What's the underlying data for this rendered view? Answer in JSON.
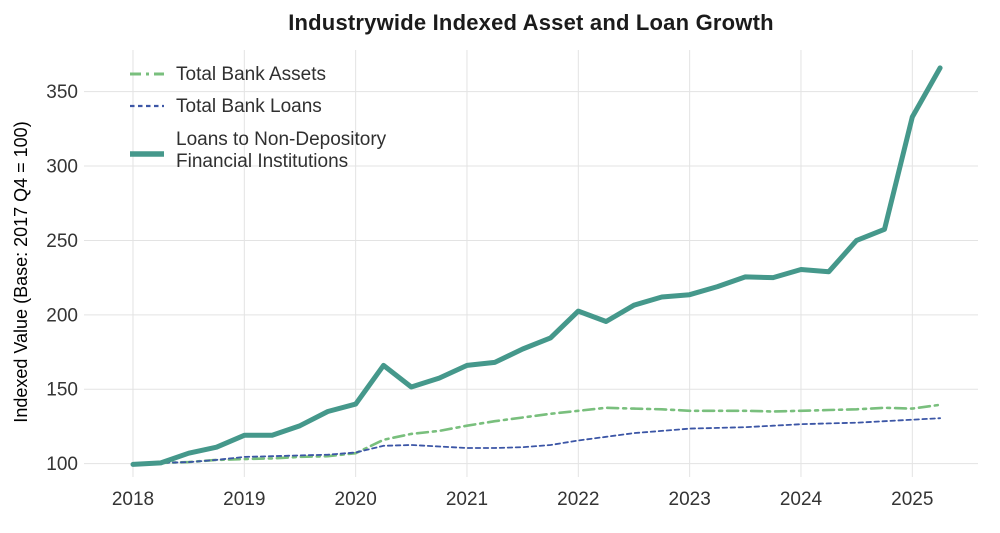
{
  "chart_data": {
    "type": "line",
    "title": "Industrywide Indexed Asset and Loan Growth",
    "xlabel": "",
    "ylabel": "Indexed Value (Base: 2017 Q4 = 100)",
    "x_ticks": [
      2018,
      2019,
      2020,
      2021,
      2022,
      2023,
      2024,
      2025
    ],
    "y_ticks": [
      100,
      150,
      200,
      250,
      300,
      350
    ],
    "xlim": [
      2017.56,
      2025.59
    ],
    "ylim": [
      91,
      378
    ],
    "grid": true,
    "legend_position": "upper left",
    "legend_frame": false,
    "x": [
      2018.0,
      2018.25,
      2018.5,
      2018.75,
      2019.0,
      2019.25,
      2019.5,
      2019.75,
      2020.0,
      2020.25,
      2020.5,
      2020.75,
      2021.0,
      2021.25,
      2021.5,
      2021.75,
      2022.0,
      2022.25,
      2022.5,
      2022.75,
      2023.0,
      2023.25,
      2023.5,
      2023.75,
      2024.0,
      2024.25,
      2024.5,
      2024.75,
      2025.0,
      2025.25
    ],
    "series": [
      {
        "name": "Total Bank Assets",
        "legend_lines": [
          "Total Bank Assets"
        ],
        "color": "#79bf7d",
        "style": "dashdot",
        "values": [
          100,
          100.5,
          101,
          102.5,
          103,
          103.5,
          104.5,
          105,
          107,
          116,
          120,
          122,
          125.5,
          128.5,
          131,
          133.5,
          135.5,
          137.5,
          137,
          136.5,
          135.5,
          135.5,
          135.5,
          135,
          135.5,
          136,
          136.5,
          137.5,
          137,
          139.5
        ]
      },
      {
        "name": "Total Bank Loans",
        "legend_lines": [
          "Total Bank Loans"
        ],
        "color": "#3c56a6",
        "style": "dashed",
        "values": [
          100,
          100.5,
          101,
          102.5,
          104.5,
          105,
          105.5,
          106,
          107.5,
          112,
          112.5,
          111.5,
          110.5,
          110.5,
          111,
          112.5,
          115.5,
          118,
          120.5,
          122,
          123.5,
          124,
          124.5,
          125.5,
          126.5,
          127,
          127.5,
          128.5,
          129.5,
          130.5
        ]
      },
      {
        "name": "Loans to Non-Depository Financial Institutions",
        "legend_lines": [
          "Loans to Non-Depository",
          "Financial Institutions"
        ],
        "color": "#45988b",
        "style": "solid",
        "values": [
          99.5,
          100.5,
          107,
          111,
          119,
          119,
          125.5,
          135,
          140,
          166,
          151.5,
          157.5,
          166,
          168,
          177,
          184.5,
          202.5,
          195.5,
          206.5,
          212,
          213.5,
          219,
          225.5,
          225,
          230.5,
          229,
          250,
          257.5,
          333,
          366
        ]
      }
    ],
    "colors": {
      "grid": "#e3e3e3",
      "tick_text": "#343434",
      "title_text": "#1b1b1b",
      "axis_label_text": "#2d2d2d",
      "legend_text": "#303030",
      "background": "#ffffff"
    }
  }
}
